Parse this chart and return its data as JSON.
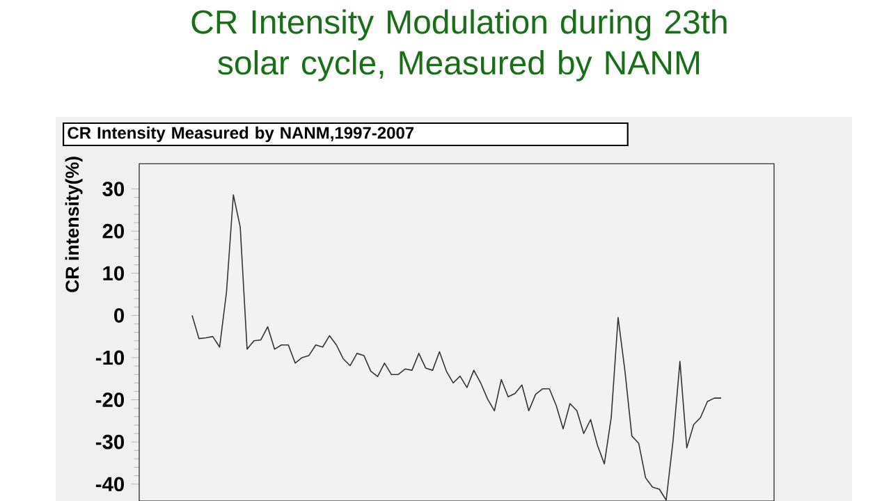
{
  "chart_data": {
    "type": "line",
    "title": "CR Intensity Modulation during 23th solar cycle, Measured by NANM",
    "subtitle": "CR Intensity Measured by NANM,1997-2007",
    "ylabel": "CR intensity(%)",
    "categories": [
      null,
      null,
      null,
      null,
      null,
      null,
      null,
      null,
      null,
      null,
      null,
      null,
      null,
      null,
      null,
      null,
      null,
      null,
      null,
      null,
      null,
      null,
      null,
      null,
      null,
      null,
      null,
      null,
      null,
      null,
      null,
      null,
      null,
      null,
      null,
      null,
      null,
      null,
      null,
      null,
      null,
      null,
      null,
      null,
      null,
      null,
      null,
      null,
      null,
      null,
      null,
      null,
      null,
      null,
      null,
      null,
      null,
      null,
      null,
      null,
      null,
      null,
      null,
      null,
      null,
      null,
      null,
      null,
      null,
      null,
      null,
      null,
      null,
      null,
      null,
      null,
      null,
      null
    ],
    "values": [
      0,
      -5.5,
      -5.3,
      -5,
      -7.5,
      5.5,
      28.6,
      21,
      -8,
      -6,
      -5.8,
      -2.7,
      -8,
      -7,
      -7,
      -11.3,
      -10,
      -9.5,
      -7,
      -7.5,
      -4.8,
      -7,
      -10.3,
      -11.9,
      -9,
      -9.5,
      -13.2,
      -14.5,
      -11.3,
      -14,
      -14,
      -12.7,
      -13,
      -9,
      -12.5,
      -13,
      -8.6,
      -13.2,
      -16,
      -14.4,
      -17.1,
      -13,
      -16,
      -19.8,
      -22.6,
      -15.2,
      -19.3,
      -18.5,
      -16.5,
      -22.6,
      -18.7,
      -17.4,
      -17.4,
      -21.4,
      -26.9,
      -20.9,
      -22.6,
      -28,
      -24.7,
      -30.8,
      -35.2,
      -24.2,
      -0.5,
      -13.2,
      -28.6,
      -30.3,
      -38.5,
      -40.7,
      -41.2,
      -43.8,
      -29.7,
      -10.9,
      -31.4,
      -25.9,
      -24.2,
      -20.4,
      -19.6,
      -19.6
    ],
    "color": "#333333",
    "ylim": [
      -44,
      36
    ],
    "yticks": [
      -40,
      -30,
      -20,
      -10,
      0,
      10,
      20,
      30
    ],
    "tick_labels": "y"
  }
}
